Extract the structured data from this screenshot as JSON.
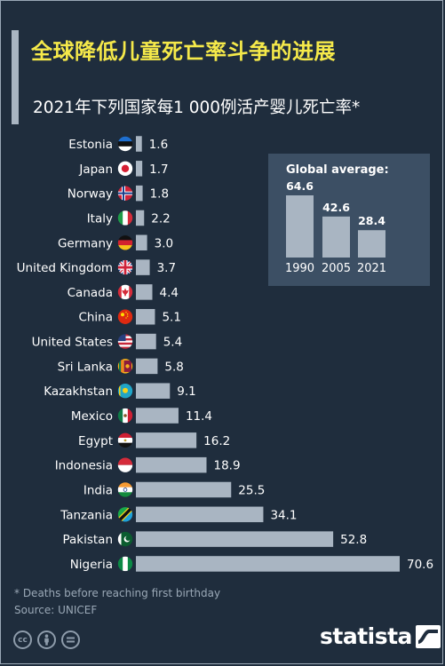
{
  "title": "全球降低儿童死亡率斗争的进展",
  "subtitle": "2021年下列国家每1 000例活产婴儿死亡率*",
  "note": "* Deaths before reaching first birthday",
  "source": "Source: UNICEF",
  "colors": {
    "background": "#1f2d3d",
    "title": "#f5e94a",
    "bar": "#a9b5c2",
    "inset_bg": "#3c4f64",
    "muted": "#9aa8b6"
  },
  "icons": [
    "cc-icon",
    "attribution-icon",
    "no-derivatives-icon",
    "statista-logo-icon"
  ],
  "chart_data": [
    {
      "type": "bar",
      "orientation": "horizontal",
      "categories": [
        "Estonia",
        "Japan",
        "Norway",
        "Italy",
        "Germany",
        "United Kingdom",
        "Canada",
        "China",
        "United States",
        "Sri Lanka",
        "Kazakhstan",
        "Mexico",
        "Egypt",
        "Indonesia",
        "India",
        "Tanzania",
        "Pakistan",
        "Nigeria"
      ],
      "values": [
        1.6,
        1.7,
        1.8,
        2.2,
        3.0,
        3.7,
        4.4,
        5.1,
        5.4,
        5.8,
        9.1,
        11.4,
        16.2,
        18.9,
        25.5,
        34.1,
        52.8,
        70.6
      ],
      "value_labels": [
        "1.6",
        "1.7",
        "1.8",
        "2.2",
        "3.0",
        "3.7",
        "4.4",
        "5.1",
        "5.4",
        "5.8",
        "9.1",
        "11.4",
        "16.2",
        "18.9",
        "25.5",
        "34.1",
        "52.8",
        "70.6"
      ],
      "flags": [
        "estonia-flag-icon",
        "japan-flag-icon",
        "norway-flag-icon",
        "italy-flag-icon",
        "germany-flag-icon",
        "uk-flag-icon",
        "canada-flag-icon",
        "china-flag-icon",
        "usa-flag-icon",
        "sri-lanka-flag-icon",
        "kazakhstan-flag-icon",
        "mexico-flag-icon",
        "egypt-flag-icon",
        "indonesia-flag-icon",
        "india-flag-icon",
        "tanzania-flag-icon",
        "pakistan-flag-icon",
        "nigeria-flag-icon"
      ],
      "xlim": [
        0,
        70.6
      ],
      "grid": false
    },
    {
      "type": "bar",
      "title": "Global average:",
      "categories": [
        "1990",
        "2005",
        "2021"
      ],
      "values": [
        64.6,
        42.6,
        28.4
      ],
      "value_labels": [
        "64.6",
        "42.6",
        "28.4"
      ],
      "ylim": [
        0,
        64.6
      ],
      "grid": false
    }
  ]
}
